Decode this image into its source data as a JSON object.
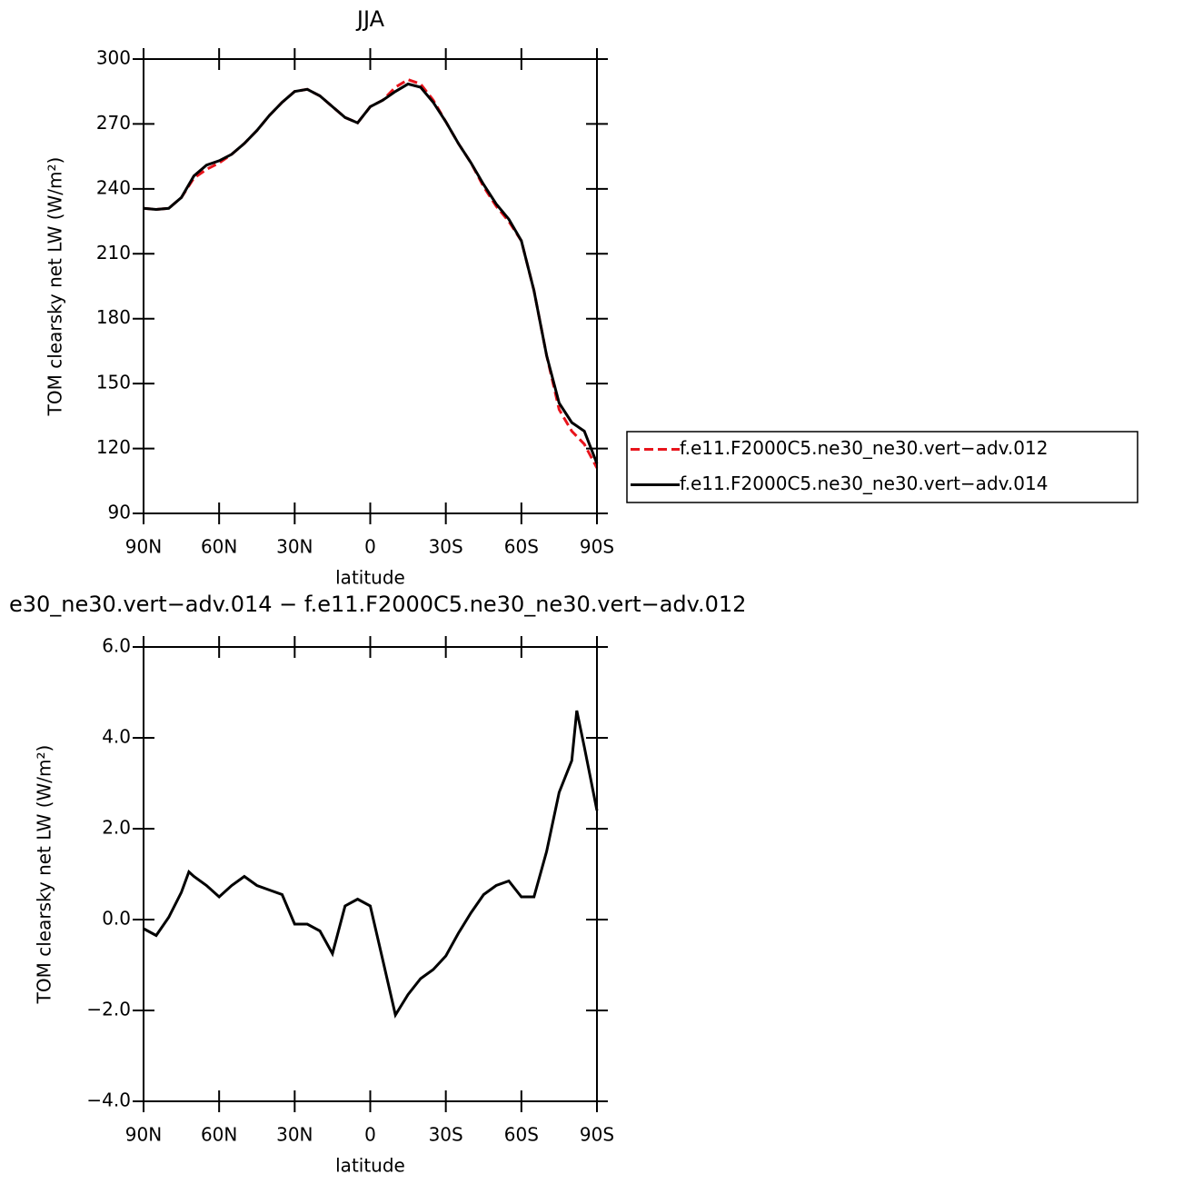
{
  "chart_data": [
    {
      "type": "line",
      "title": "JJA",
      "ylabel": "TOM clearsky net LW (W/m²)",
      "xlabel": "latitude",
      "x": [
        90,
        85,
        80,
        75,
        70,
        65,
        60,
        55,
        50,
        45,
        40,
        35,
        30,
        25,
        20,
        15,
        10,
        5,
        0,
        -5,
        -10,
        -15,
        -20,
        -25,
        -30,
        -35,
        -40,
        -45,
        -50,
        -55,
        -60,
        -65,
        -70,
        -75,
        -80,
        -85,
        -90
      ],
      "series": [
        {
          "name": "f.e11.F2000C5.ne30_ne30.vert−adv.012",
          "color": "#e8141c",
          "linestyle": "dashed",
          "values": [
            231,
            230.5,
            231,
            236,
            245,
            249,
            252,
            256,
            261,
            267,
            274,
            280,
            285,
            286,
            283,
            278,
            273,
            270.5,
            278,
            281,
            287,
            290.5,
            288.5,
            281,
            271,
            261,
            252,
            241,
            232,
            225,
            216,
            193,
            163,
            138,
            128,
            122,
            111
          ]
        },
        {
          "name": "f.e11.F2000C5.ne30_ne30.vert−adv.014",
          "color": "#000000",
          "linestyle": "solid",
          "values": [
            231,
            230.5,
            231,
            236,
            246,
            251,
            253,
            256,
            261,
            267,
            274,
            280,
            285,
            286,
            283,
            278,
            273,
            270.5,
            278,
            281,
            285,
            288.5,
            287,
            280,
            271,
            261,
            252,
            242,
            233,
            226,
            216,
            193,
            163,
            141,
            132,
            128,
            113
          ]
        }
      ],
      "xlim": [
        90,
        -90
      ],
      "xticks": [
        {
          "value": 90,
          "label": "90N"
        },
        {
          "value": 60,
          "label": "60N"
        },
        {
          "value": 30,
          "label": "30N"
        },
        0,
        {
          "value": -30,
          "label": "30S"
        },
        {
          "value": -60,
          "label": "60S"
        },
        {
          "value": -90,
          "label": "90S"
        }
      ],
      "ylim": [
        90,
        300
      ],
      "yticks": [
        90,
        120,
        150,
        180,
        210,
        240,
        270,
        300
      ],
      "legend": "right"
    },
    {
      "type": "line",
      "title": "e30_ne30.vert−adv.014 − f.e11.F2000C5.ne30_ne30.vert−adv.012",
      "ylabel": "TOM clearsky net LW (W/m²)",
      "xlabel": "latitude",
      "x": [
        90,
        85,
        80,
        75,
        72,
        70,
        65,
        60,
        55,
        50,
        45,
        40,
        35,
        30,
        25,
        20,
        15,
        10,
        5,
        0,
        -5,
        -10,
        -15,
        -20,
        -25,
        -30,
        -35,
        -40,
        -45,
        -50,
        -55,
        -60,
        -65,
        -70,
        -75,
        -80,
        -82,
        -85,
        -90
      ],
      "values": [
        -0.2,
        -0.35,
        0.05,
        0.6,
        1.05,
        0.95,
        0.75,
        0.5,
        0.75,
        0.95,
        0.75,
        0.65,
        0.55,
        -0.1,
        -0.1,
        -0.25,
        -0.75,
        0.3,
        0.45,
        0.3,
        -0.9,
        -2.1,
        -1.65,
        -1.3,
        -1.1,
        -0.8,
        -0.3,
        0.15,
        0.55,
        0.75,
        0.85,
        0.5,
        0.5,
        1.5,
        2.8,
        3.5,
        4.6,
        3.8,
        2.4
      ],
      "color": "#000000",
      "xlim": [
        90,
        -90
      ],
      "xticks": [
        {
          "value": 90,
          "label": "90N"
        },
        {
          "value": 60,
          "label": "60N"
        },
        {
          "value": 30,
          "label": "30N"
        },
        0,
        {
          "value": -30,
          "label": "30S"
        },
        {
          "value": -60,
          "label": "60S"
        },
        {
          "value": -90,
          "label": "90S"
        }
      ],
      "ylim": [
        -4,
        6
      ],
      "yticks": [
        {
          "value": -4,
          "label": "−4.0"
        },
        {
          "value": -2,
          "label": "−2.0"
        },
        {
          "value": 0,
          "label": "0.0"
        },
        {
          "value": 2,
          "label": "2.0"
        },
        {
          "value": 4,
          "label": "4.0"
        },
        {
          "value": 6,
          "label": "6.0"
        }
      ]
    }
  ]
}
